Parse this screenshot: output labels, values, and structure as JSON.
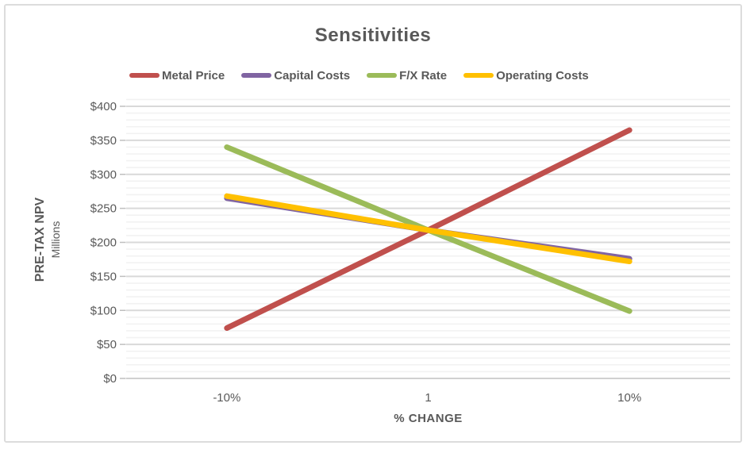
{
  "colors": {
    "text": "#595959",
    "grid_major": "#d9d9d9",
    "grid_minor": "#f2f2f2",
    "axis_line": "#d0d0d0",
    "tick": "#bfbfbf",
    "frame_border": "#dcdcdc"
  },
  "chart_data": {
    "type": "line",
    "title": "Sensitivities",
    "xlabel": "% CHANGE",
    "ylabel": "PRE-TAX NPV",
    "ylabel_sub": "Millions",
    "categories": [
      "-10%",
      "1",
      "10%"
    ],
    "series": [
      {
        "name": "Metal Price",
        "color": "#C0504D",
        "values": [
          74,
          218,
          365
        ]
      },
      {
        "name": "Capital Costs",
        "color": "#8064A2",
        "values": [
          265,
          218,
          176
        ]
      },
      {
        "name": "F/X Rate",
        "color": "#9BBB59",
        "values": [
          340,
          218,
          99
        ]
      },
      {
        "name": "Operating Costs",
        "color": "#FFC000",
        "values": [
          268,
          218,
          172
        ]
      }
    ],
    "ylim": [
      0,
      400
    ],
    "y_major_step": 50,
    "y_minor_step": 10,
    "y_tick_labels": [
      "$0",
      "$50",
      "$100",
      "$150",
      "$200",
      "$250",
      "$300",
      "$350",
      "$400"
    ],
    "grid": "horizontal minor+major",
    "legend_position": "top"
  }
}
